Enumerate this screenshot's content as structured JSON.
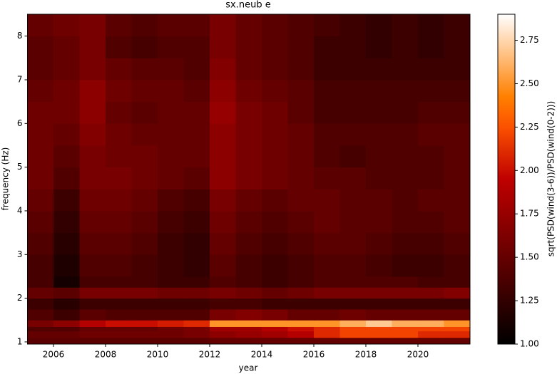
{
  "chart_data": {
    "type": "heatmap",
    "title": "sx.neub e",
    "xlabel": "year",
    "ylabel": "frequency (Hz)",
    "colorbar_label": "sqrt(PSD(wind(3-6))/PSD(wind(0-2)))",
    "colormap": "gist_heat",
    "x_edges": [
      2005,
      2006,
      2007,
      2008,
      2009,
      2010,
      2011,
      2012,
      2013,
      2014,
      2015,
      2016,
      2017,
      2018,
      2019,
      2020,
      2021,
      2022
    ],
    "y_edges": [
      0.95,
      1.1,
      1.25,
      1.35,
      1.5,
      1.75,
      2,
      2.25,
      2.5,
      3,
      3.5,
      4,
      4.5,
      5,
      5.5,
      6,
      6.5,
      7,
      7.5,
      8,
      8.5
    ],
    "z": [
      [
        1.45,
        1.45,
        1.45,
        1.45,
        1.45,
        1.45,
        1.45,
        1.5,
        1.5,
        1.5,
        1.5,
        1.5,
        1.5,
        1.5,
        1.5,
        1.5,
        1.5
      ],
      [
        1.5,
        1.5,
        1.55,
        1.55,
        1.55,
        1.55,
        1.6,
        1.7,
        1.75,
        1.8,
        1.9,
        2.1,
        2.2,
        2.2,
        2.2,
        2.1,
        2.1
      ],
      [
        1.4,
        1.4,
        1.5,
        1.5,
        1.5,
        1.55,
        1.6,
        1.8,
        1.8,
        1.9,
        2.0,
        2.1,
        2.2,
        2.2,
        2.2,
        2.2,
        2.2
      ],
      [
        1.6,
        1.7,
        1.9,
        2.0,
        2.0,
        2.05,
        2.1,
        2.5,
        2.5,
        2.5,
        2.5,
        2.5,
        2.6,
        2.7,
        2.6,
        2.6,
        2.5
      ],
      [
        1.4,
        1.3,
        1.45,
        1.4,
        1.4,
        1.4,
        1.4,
        1.6,
        1.65,
        1.6,
        1.5,
        1.5,
        1.55,
        1.5,
        1.5,
        1.5,
        1.5
      ],
      [
        1.3,
        1.2,
        1.3,
        1.3,
        1.3,
        1.3,
        1.3,
        1.35,
        1.35,
        1.3,
        1.3,
        1.3,
        1.3,
        1.3,
        1.3,
        1.3,
        1.3
      ],
      [
        1.5,
        1.45,
        1.6,
        1.6,
        1.6,
        1.55,
        1.55,
        1.6,
        1.55,
        1.5,
        1.55,
        1.6,
        1.6,
        1.6,
        1.6,
        1.6,
        1.65
      ],
      [
        1.35,
        1.1,
        1.35,
        1.35,
        1.35,
        1.3,
        1.3,
        1.4,
        1.35,
        1.3,
        1.35,
        1.4,
        1.4,
        1.4,
        1.4,
        1.35,
        1.35
      ],
      [
        1.35,
        1.15,
        1.4,
        1.4,
        1.35,
        1.3,
        1.25,
        1.45,
        1.35,
        1.3,
        1.35,
        1.4,
        1.4,
        1.35,
        1.3,
        1.3,
        1.35
      ],
      [
        1.4,
        1.2,
        1.45,
        1.45,
        1.4,
        1.3,
        1.25,
        1.5,
        1.4,
        1.35,
        1.4,
        1.45,
        1.45,
        1.4,
        1.35,
        1.35,
        1.4
      ],
      [
        1.45,
        1.25,
        1.5,
        1.5,
        1.45,
        1.35,
        1.3,
        1.55,
        1.45,
        1.4,
        1.45,
        1.5,
        1.45,
        1.45,
        1.4,
        1.4,
        1.45
      ],
      [
        1.5,
        1.3,
        1.55,
        1.55,
        1.5,
        1.4,
        1.35,
        1.6,
        1.5,
        1.45,
        1.5,
        1.5,
        1.45,
        1.45,
        1.4,
        1.45,
        1.45
      ],
      [
        1.55,
        1.4,
        1.6,
        1.6,
        1.55,
        1.5,
        1.45,
        1.7,
        1.6,
        1.55,
        1.5,
        1.45,
        1.45,
        1.4,
        1.4,
        1.4,
        1.45
      ],
      [
        1.55,
        1.45,
        1.6,
        1.55,
        1.55,
        1.5,
        1.5,
        1.7,
        1.6,
        1.55,
        1.5,
        1.4,
        1.35,
        1.4,
        1.4,
        1.4,
        1.45
      ],
      [
        1.55,
        1.5,
        1.65,
        1.55,
        1.5,
        1.5,
        1.5,
        1.7,
        1.6,
        1.55,
        1.5,
        1.4,
        1.4,
        1.4,
        1.4,
        1.45,
        1.45
      ],
      [
        1.55,
        1.55,
        1.7,
        1.5,
        1.45,
        1.5,
        1.5,
        1.75,
        1.6,
        1.55,
        1.45,
        1.35,
        1.35,
        1.35,
        1.35,
        1.4,
        1.4
      ],
      [
        1.5,
        1.55,
        1.7,
        1.55,
        1.5,
        1.5,
        1.45,
        1.7,
        1.55,
        1.5,
        1.45,
        1.35,
        1.35,
        1.35,
        1.35,
        1.35,
        1.35
      ],
      [
        1.45,
        1.5,
        1.6,
        1.5,
        1.45,
        1.45,
        1.4,
        1.65,
        1.5,
        1.45,
        1.4,
        1.3,
        1.3,
        1.3,
        1.3,
        1.3,
        1.3
      ],
      [
        1.45,
        1.5,
        1.6,
        1.4,
        1.35,
        1.4,
        1.4,
        1.6,
        1.5,
        1.45,
        1.4,
        1.3,
        1.3,
        1.25,
        1.3,
        1.25,
        1.3
      ],
      [
        1.5,
        1.55,
        1.6,
        1.45,
        1.4,
        1.45,
        1.45,
        1.6,
        1.5,
        1.45,
        1.4,
        1.35,
        1.3,
        1.25,
        1.3,
        1.25,
        1.3
      ]
    ],
    "xlim": [
      2005,
      2022
    ],
    "xticks": [
      2006,
      2008,
      2010,
      2012,
      2014,
      2016,
      2018,
      2020
    ],
    "ylim": [
      0.95,
      8.5
    ],
    "yticks": [
      1,
      2,
      3,
      4,
      5,
      6,
      7,
      8
    ],
    "clim": [
      1,
      2.9
    ],
    "cticks": [
      {
        "value": 1,
        "label": "1.00"
      },
      {
        "value": 1.25,
        "label": "1.25"
      },
      {
        "value": 1.5,
        "label": "1.50"
      },
      {
        "value": 1.75,
        "label": "1.75"
      },
      {
        "value": 2,
        "label": "2.00"
      },
      {
        "value": 2.25,
        "label": "2.25"
      },
      {
        "value": 2.5,
        "label": "2.50"
      },
      {
        "value": 2.75,
        "label": "2.75"
      }
    ]
  }
}
